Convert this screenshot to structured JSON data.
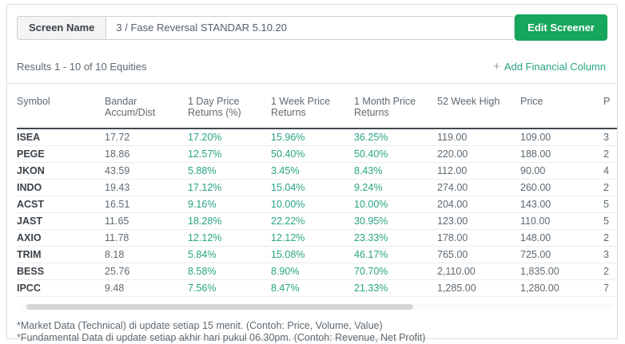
{
  "colors": {
    "button_green": "#16a65c",
    "value_teal": "#27a483"
  },
  "header": {
    "screen_name_label": "Screen Name",
    "screen_name_value": "3 / Fase Reversal STANDAR 5.10.20",
    "edit_button_label": "Edit Screener"
  },
  "toolbar": {
    "results_text": "Results 1 - 10 of 10 Equities",
    "add_column_plus": "+",
    "add_column_label": "Add Financial Column"
  },
  "table": {
    "columns": [
      {
        "id": "symbol",
        "label": "Symbol",
        "green": false
      },
      {
        "id": "bandar_accum_dist",
        "label": "Bandar Accum/Dist",
        "green": false
      },
      {
        "id": "day1_price_returns",
        "label": "1 Day Price Returns (%)",
        "green": true
      },
      {
        "id": "week1_price_returns",
        "label": "1 Week Price Returns",
        "green": true
      },
      {
        "id": "month1_price_returns",
        "label": "1 Month Price Returns",
        "green": true
      },
      {
        "id": "week52_high",
        "label": "52 Week High",
        "green": false
      },
      {
        "id": "price",
        "label": "Price",
        "green": false
      },
      {
        "id": "p_truncated",
        "label": "P",
        "green": false
      }
    ],
    "rows": [
      [
        "ISEA",
        "17.72",
        "17.20%",
        "15.96%",
        "36.25%",
        "119.00",
        "109.00",
        "3"
      ],
      [
        "PEGE",
        "18.86",
        "12.57%",
        "50.40%",
        "50.40%",
        "220.00",
        "188.00",
        "2"
      ],
      [
        "JKON",
        "43.59",
        "5.88%",
        "3.45%",
        "8.43%",
        "112.00",
        "90.00",
        "4"
      ],
      [
        "INDO",
        "19.43",
        "17.12%",
        "15.04%",
        "9.24%",
        "274.00",
        "260.00",
        "2"
      ],
      [
        "ACST",
        "16.51",
        "9.16%",
        "10.00%",
        "10.00%",
        "204.00",
        "143.00",
        "5"
      ],
      [
        "JAST",
        "11.65",
        "18.28%",
        "22.22%",
        "30.95%",
        "123.00",
        "110.00",
        "5"
      ],
      [
        "AXIO",
        "11.78",
        "12.12%",
        "12.12%",
        "23.33%",
        "178.00",
        "148.00",
        "2"
      ],
      [
        "TRIM",
        "8.18",
        "5.84%",
        "15.08%",
        "46.17%",
        "765.00",
        "725.00",
        "3"
      ],
      [
        "BESS",
        "25.76",
        "8.58%",
        "8.90%",
        "70.70%",
        "2,110.00",
        "1,835.00",
        "2"
      ],
      [
        "IPCC",
        "9.48",
        "7.56%",
        "8.47%",
        "21.33%",
        "1,285.00",
        "1,280.00",
        "7"
      ]
    ]
  },
  "footnotes": [
    "*Market Data (Technical) di update setiap 15 menit. (Contoh: Price, Volume, Value)",
    "*Fundamental Data di update setiap akhir hari pukul 06.30pm. (Contoh: Revenue, Net Profit)"
  ]
}
